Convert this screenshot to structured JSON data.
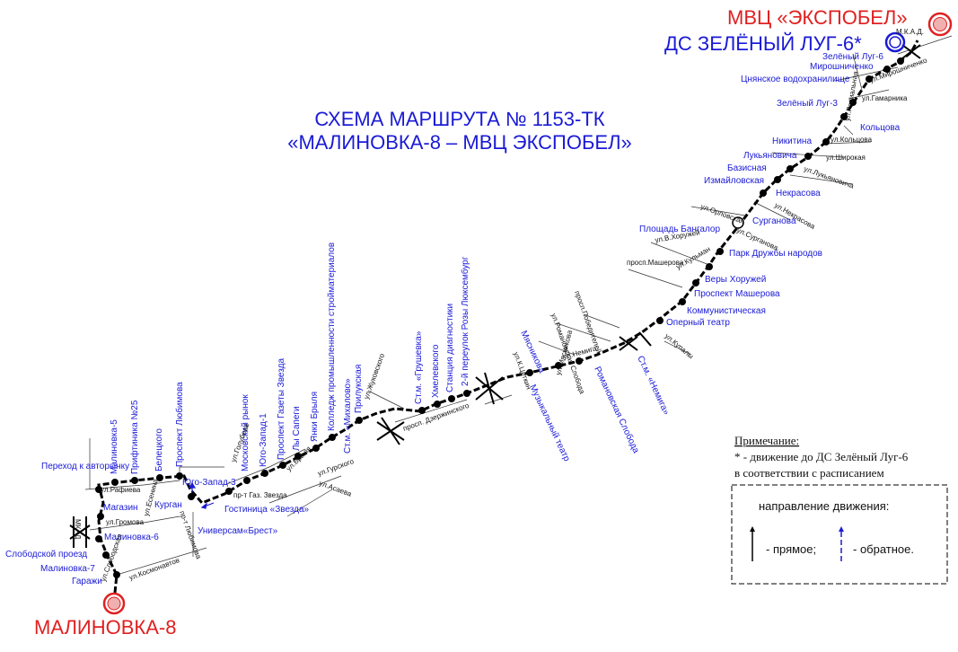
{
  "title": {
    "line1": "СХЕМА МАРШРУТА № 1153-ТК",
    "line2": "«МАЛИНОВКА-8 – МВЦ ЭКСПОБЕЛ»"
  },
  "terminals": {
    "start": "МАЛИНОВКА-8",
    "end": "МВЦ «ЭКСПОБЕЛ»",
    "depot": "ДС ЗЕЛЁНЫЙ ЛУГ-6*"
  },
  "stops": [
    "Гаражи",
    "Малиновка-7",
    "Слободской проезд",
    "Малиновка-6",
    "Магазин",
    "Переход к авторынку",
    "Малиновка-5",
    "Прифтиника №25",
    "Белецкого",
    "Проспект Любимова",
    "Курган",
    "Юго-Запад-3",
    "Универсам«Брест»",
    "Гостиница «Звезда»",
    "Московский рынок",
    "Юго-Запад-1",
    "Проспект Газеты Звезда",
    "Лы Сапеги",
    "Янки Брыля",
    "Колледж промышленности стройматериалов",
    "Ст.м. «Михалово»",
    "Прилукская",
    "Ст.м. «Грушевка»",
    "Хмелевского",
    "Станция диагностики",
    "2-й переулок Розы Люксембург",
    "Мясникова",
    "Музыкальный театр",
    "Романовская Слобода",
    "Ст.м. «Немига»",
    "Оперный театр",
    "Коммунистическая",
    "Проспект Машерова",
    "Веры Хоружей",
    "Парк Дружбы народов",
    "Площадь Бангалор",
    "Сурганова",
    "Некрасова",
    "Измайловская",
    "Базисная",
    "Лукьяновича",
    "Никитина",
    "Кольцова",
    "Зелёный Луг-3",
    "Цнянское водохранилище",
    "Мирошниченко",
    "Зелёный Луг-6"
  ],
  "streets": [
    "ул.Рафиева",
    "ул.Громова",
    "ул.Слободская",
    "ул.Космонавтов",
    "МКАД",
    "ул.Есенина",
    "пр-т Любимова",
    "пр-т Газ. Звезда",
    "ул.Голубева",
    "ул.Брыля",
    "ул.Гурского",
    "ул.Асаева",
    "ул.Жуковского",
    "просп. Дзержинского",
    "ул.Немига",
    "ул.К.Цеткин",
    "ул.Романовская Слобода",
    "просп.Победителей",
    "ул.Купалы",
    "ул.Мясникова",
    "просп.Машерова",
    "ул.В.Хоружей",
    "ул.Кульман",
    "ул.Сурганова",
    "ул.Орловская",
    "ул.Некрасова",
    "ул.Лукьяновича",
    "ул.Широкая",
    "ул.Кольцова",
    "ул.Гамарника",
    "ул.Мирошниченко",
    "ул.Радиальная",
    "М.К.А.Д."
  ],
  "note": {
    "heading": "Примечание:",
    "line1": "* - движение до ДС Зелёный Луг-6",
    "line2": "в соответствии с расписанием"
  },
  "legend": {
    "title": "направление движения:",
    "forward": "- прямое;",
    "reverse": "- обратное."
  },
  "colors": {
    "route": "#000000",
    "stop_label": "#1a1ad6",
    "terminal_red": "#e02020",
    "depot_blue": "#1a1ad6"
  }
}
